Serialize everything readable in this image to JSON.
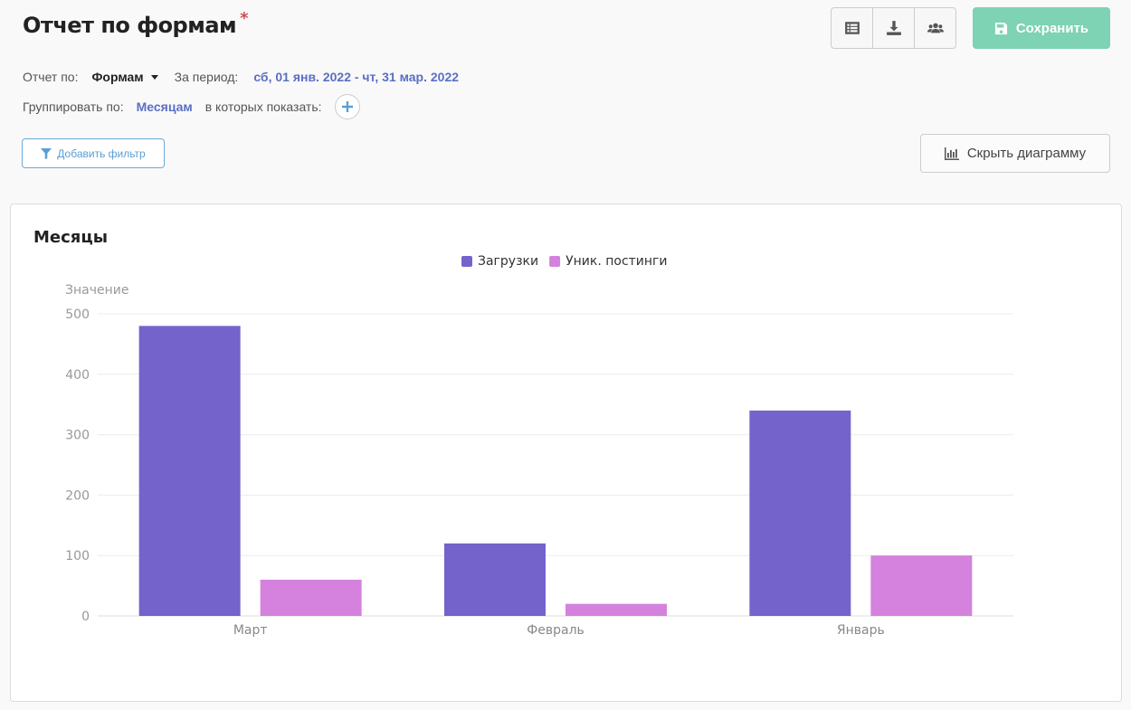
{
  "header": {
    "title": "Отчет по формам",
    "unsaved_marker": "*"
  },
  "toolbar": {
    "save_label": "Сохранить"
  },
  "report": {
    "by_label": "Отчет по:",
    "by_value": "Формам",
    "period_label": "За период:",
    "period_value": "сб, 01 янв. 2022 - чт, 31 мар. 2022",
    "group_label": "Группировать по:",
    "group_value": "Месяцам",
    "show_label": "в которых показать:"
  },
  "filter": {
    "add_label": "Добавить фильтр"
  },
  "chart_toggle": {
    "label": "Скрыть диаграмму"
  },
  "colors": {
    "series1": "#7563cc",
    "series2": "#d482dd",
    "save": "#7dd3b3",
    "link": "#5a6fc4"
  },
  "chart_data": {
    "type": "bar",
    "title": "Месяцы",
    "ylabel": "Значение",
    "xlabel": "",
    "categories": [
      "Март",
      "Февраль",
      "Январь"
    ],
    "series": [
      {
        "name": "Загрузки",
        "color": "#7563cc",
        "values": [
          480,
          120,
          340
        ]
      },
      {
        "name": "Уник. постинги",
        "color": "#d482dd",
        "values": [
          60,
          20,
          100
        ]
      }
    ],
    "ylim": [
      0,
      500
    ],
    "yticks": [
      0,
      100,
      200,
      300,
      400,
      500
    ],
    "grid": true,
    "legend": "top-center"
  }
}
